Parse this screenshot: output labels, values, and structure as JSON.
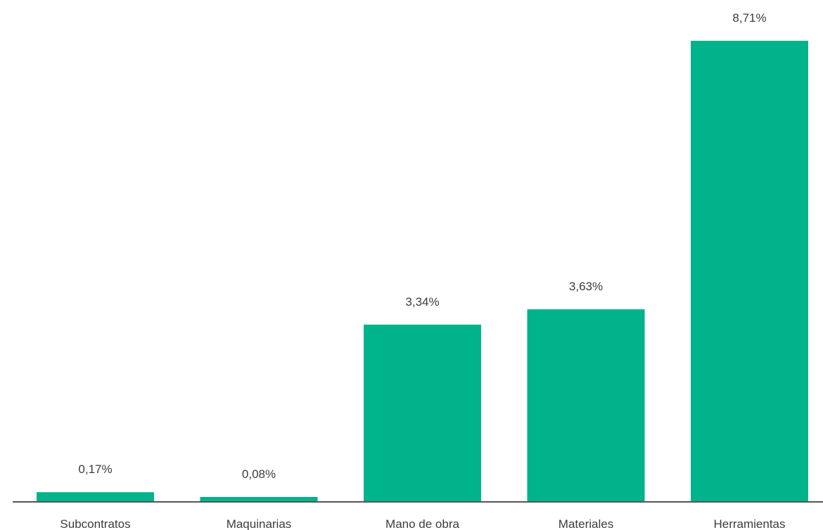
{
  "colors": {
    "bar": "#00b38a",
    "axis": "#555555",
    "text": "#3c3c3c",
    "background": "#ffffff"
  },
  "chart_data": {
    "type": "bar",
    "title": "",
    "xlabel": "",
    "ylabel": "",
    "categories": [
      "Subcontratos",
      "Maquinarias",
      "Mano de obra",
      "Materiales",
      "Herramientas"
    ],
    "values": [
      0.17,
      0.08,
      3.34,
      3.63,
      8.71
    ],
    "data_labels": [
      "0,17%",
      "0,08%",
      "3,34%",
      "3,63%",
      "8,71%"
    ],
    "ylim": [
      0,
      8.71
    ],
    "grid": false,
    "legend": "none"
  }
}
